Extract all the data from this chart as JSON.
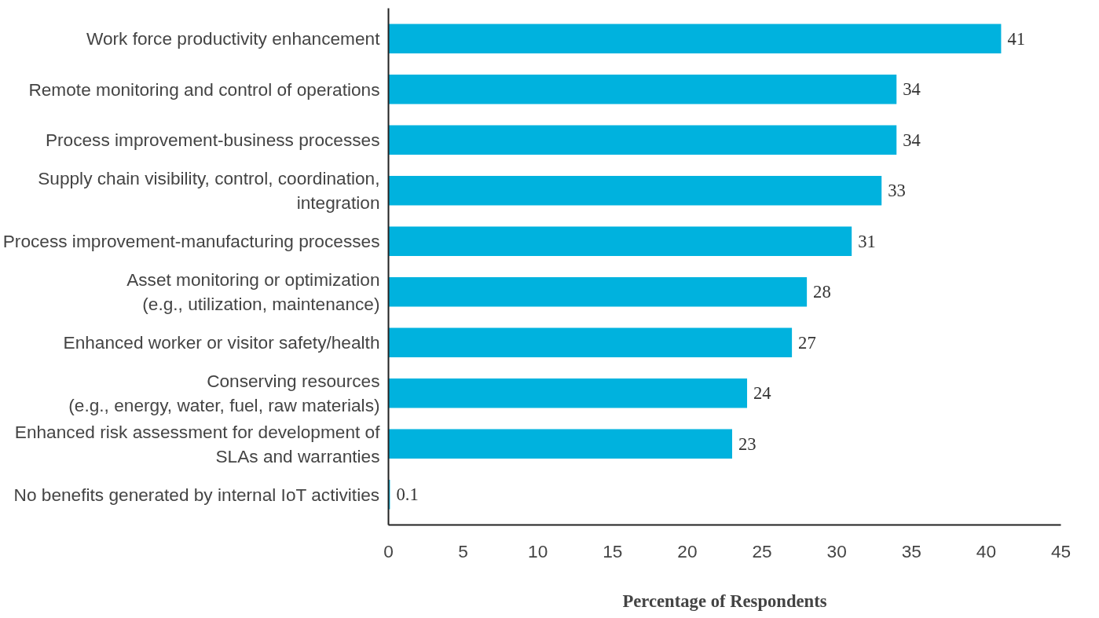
{
  "chart_data": {
    "type": "bar",
    "orientation": "horizontal",
    "xlabel": "Percentage of Respondents",
    "categories": [
      "Work force productivity enhancement",
      "Remote monitoring and control of operations",
      "Process improvement-business processes",
      "Supply chain visibility, control, coordination,\nintegration",
      "Process improvement-manufacturing processes",
      "Asset monitoring or optimization\n(e.g., utilization, maintenance)",
      "Enhanced worker or visitor safety/health",
      "Conserving resources\n(e.g., energy, water, fuel, raw materials)",
      "Enhanced risk assessment for development of\nSLAs and warranties",
      "No benefits generated by internal IoT activities"
    ],
    "values": [
      41,
      34,
      34,
      33,
      31,
      28,
      27,
      24,
      23,
      0.1
    ],
    "color": "#00b2de",
    "data_labels": true,
    "grid": false,
    "xlim": [
      0,
      45
    ],
    "xticks": [
      0,
      5,
      10,
      15,
      20,
      25,
      30,
      35,
      40,
      45
    ]
  }
}
